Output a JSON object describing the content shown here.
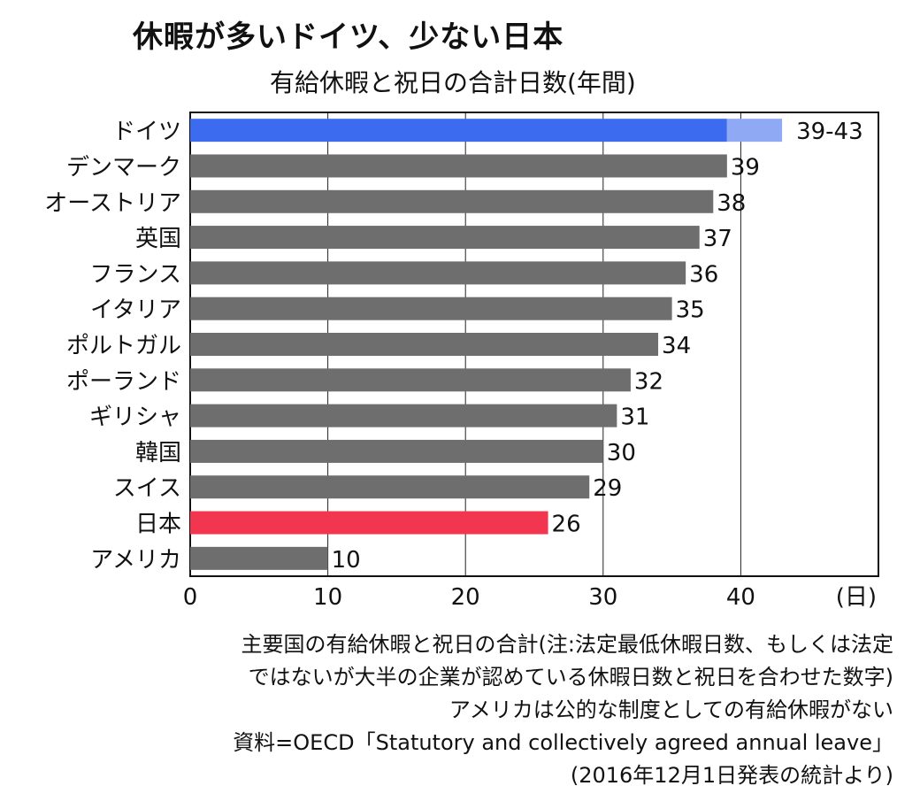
{
  "title": "休暇が多いドイツ、少ない日本",
  "subtitle": "有給休暇と祝日の合計日数(年間)",
  "chart_data": {
    "type": "bar",
    "orientation": "horizontal",
    "categories": [
      "ドイツ",
      "デンマーク",
      "オーストリア",
      "英国",
      "フランス",
      "イタリア",
      "ポルトガル",
      "ポーランド",
      "ギリシャ",
      "韓国",
      "スイス",
      "日本",
      "アメリカ"
    ],
    "values": [
      39,
      39,
      38,
      37,
      36,
      35,
      34,
      32,
      31,
      30,
      29,
      26,
      10
    ],
    "range_high": {
      "ドイツ": 43
    },
    "data_labels": [
      "39-43",
      "39",
      "38",
      "37",
      "36",
      "35",
      "34",
      "32",
      "31",
      "30",
      "29",
      "26",
      "10"
    ],
    "xlim": [
      0,
      50
    ],
    "xticks": [
      0,
      10,
      20,
      30,
      40
    ],
    "unit_label": "(日)",
    "grid": "vertical",
    "colors": {
      "default": "#6e6e6e",
      "ドイツ": "#3d6bf0",
      "ドイツ_range": "#8fa9f5",
      "日本": "#f2364f"
    }
  },
  "notes": [
    "主要国の有給休暇と祝日の合計(注:法定最低休暇日数、もしくは法定",
    "ではないが大半の企業が認めている休暇日数と祝日を合わせた数字)",
    "アメリカは公的な制度としての有給休暇がない",
    "資料=OECD「Statutory and collectively agreed annual leave」",
    "(2016年12月1日発表の統計より)"
  ]
}
